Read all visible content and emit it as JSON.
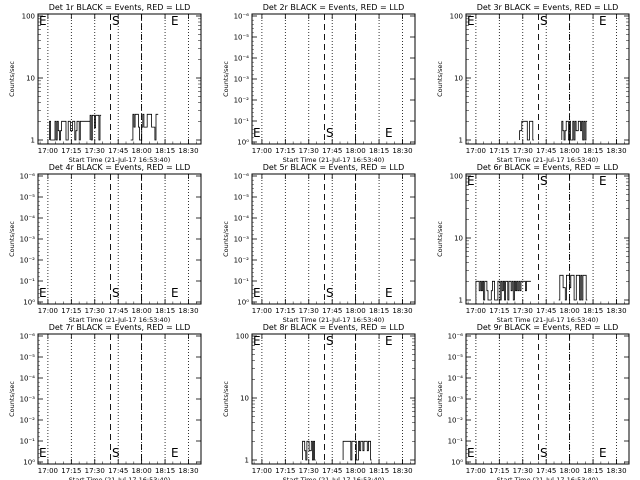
{
  "chart_data": [
    {
      "id": "1r",
      "title": "Det 1r BLACK = Events, RED = LLD",
      "type": "line",
      "scale": "log",
      "yticks": [
        "1",
        "10",
        "100"
      ],
      "ylim": [
        1,
        100
      ],
      "ylabel": "Counts/sec",
      "xlabel": "Start Time (21-Jul-17 16:53:40)",
      "xticks": [
        "17:00",
        "17:15",
        "17:30",
        "17:45",
        "18:00",
        "18:15",
        "18:30"
      ],
      "segments": [
        {
          "from": "17:01",
          "to": "17:27",
          "level": 2
        },
        {
          "from": "17:27",
          "to": "17:34",
          "level": 2.5
        },
        {
          "from": "17:53",
          "to": "18:10",
          "level": 2.6
        }
      ],
      "markers": [
        {
          "label": "S",
          "time": "17:40"
        },
        {
          "label": "E",
          "time": "18:14"
        }
      ],
      "series_colors": {
        "events": "#000000",
        "lld": "#ff0000"
      }
    },
    {
      "id": "2r",
      "title": "Det 2r BLACK = Events, RED = LLD",
      "type": "line",
      "scale": "log",
      "yticks": [
        "10⁰",
        "10⁻¹",
        "10⁻²",
        "10⁻³",
        "10⁻⁴",
        "10⁻⁵",
        "10⁻⁶"
      ],
      "ylim": [
        1,
        1e-06
      ],
      "ylabel": "Counts/sec",
      "xlabel": "Start Time (21-Jul-17 16:53:40)",
      "xticks": [
        "17:00",
        "17:15",
        "17:30",
        "17:45",
        "18:00",
        "18:15",
        "18:30"
      ],
      "segments": [],
      "markers": [
        {
          "label": "S",
          "time": "17:40"
        },
        {
          "label": "E",
          "time": "18:14"
        }
      ],
      "series_colors": {
        "events": "#000000",
        "lld": "#ff0000"
      }
    },
    {
      "id": "3r",
      "title": "Det 3r BLACK = Events, RED = LLD",
      "type": "line",
      "scale": "log",
      "yticks": [
        "1",
        "10",
        "100"
      ],
      "ylim": [
        1,
        100
      ],
      "ylabel": "Counts/sec",
      "xlabel": "Start Time (21-Jul-17 16:53:40)",
      "xticks": [
        "17:00",
        "17:15",
        "17:30",
        "17:45",
        "18:00",
        "18:15",
        "18:30"
      ],
      "segments": [
        {
          "from": "17:28",
          "to": "17:37",
          "level": 2
        },
        {
          "from": "17:55",
          "to": "18:11",
          "level": 2
        }
      ],
      "markers": [
        {
          "label": "S",
          "time": "17:40"
        },
        {
          "label": "E",
          "time": "18:14"
        }
      ],
      "series_colors": {
        "events": "#000000",
        "lld": "#ff0000"
      }
    },
    {
      "id": "4r",
      "title": "Det 4r BLACK = Events, RED = LLD",
      "type": "line",
      "scale": "log",
      "yticks": [
        "10⁰",
        "10⁻¹",
        "10⁻²",
        "10⁻³",
        "10⁻⁴",
        "10⁻⁵",
        "10⁻⁶"
      ],
      "ylim": [
        1,
        1e-06
      ],
      "ylabel": "Counts/sec",
      "xlabel": "Start Time (21-Jul-17 16:53:40)",
      "xticks": [
        "17:00",
        "17:15",
        "17:30",
        "17:45",
        "18:00",
        "18:15",
        "18:30"
      ],
      "segments": [],
      "markers": [
        {
          "label": "S",
          "time": "17:40"
        },
        {
          "label": "E",
          "time": "18:14"
        }
      ],
      "series_colors": {
        "events": "#000000",
        "lld": "#ff0000"
      }
    },
    {
      "id": "5r",
      "title": "Det 5r BLACK = Events, RED = LLD",
      "type": "line",
      "scale": "log",
      "yticks": [
        "10⁰",
        "10⁻¹",
        "10⁻²",
        "10⁻³",
        "10⁻⁴",
        "10⁻⁵",
        "10⁻⁶"
      ],
      "ylim": [
        1,
        1e-06
      ],
      "ylabel": "Counts/sec",
      "xlabel": "Start Time (21-Jul-17 16:53:40)",
      "xticks": [
        "17:00",
        "17:15",
        "17:30",
        "17:45",
        "18:00",
        "18:15",
        "18:30"
      ],
      "segments": [],
      "markers": [
        {
          "label": "S",
          "time": "17:40"
        },
        {
          "label": "E",
          "time": "18:14"
        }
      ],
      "series_colors": {
        "events": "#000000",
        "lld": "#ff0000"
      }
    },
    {
      "id": "6r",
      "title": "Det 6r BLACK = Events, RED = LLD",
      "type": "line",
      "scale": "log",
      "yticks": [
        "1",
        "10",
        "100"
      ],
      "ylim": [
        1,
        100
      ],
      "ylabel": "Counts/sec",
      "xlabel": "Start Time (21-Jul-17 16:53:40)",
      "xticks": [
        "17:00",
        "17:15",
        "17:30",
        "17:45",
        "18:00",
        "18:15",
        "18:30"
      ],
      "segments": [
        {
          "from": "17:00",
          "to": "17:35",
          "level": 2
        },
        {
          "from": "17:53",
          "to": "18:11",
          "level": 2.5
        }
      ],
      "markers": [
        {
          "label": "S",
          "time": "17:40"
        },
        {
          "label": "E",
          "time": "18:14"
        }
      ],
      "series_colors": {
        "events": "#000000",
        "lld": "#ff0000"
      }
    },
    {
      "id": "7r",
      "title": "Det 7r BLACK = Events, RED = LLD",
      "type": "line",
      "scale": "log",
      "yticks": [
        "10⁰",
        "10⁻¹",
        "10⁻²",
        "10⁻³",
        "10⁻⁴",
        "10⁻⁵",
        "10⁻⁶"
      ],
      "ylim": [
        1,
        1e-06
      ],
      "ylabel": "Counts/sec",
      "xlabel": "Start Time (21-Jul-17 16:53:40)",
      "xticks": [
        "17:00",
        "17:15",
        "17:30",
        "17:45",
        "18:00",
        "18:15",
        "18:30"
      ],
      "segments": [],
      "markers": [
        {
          "label": "S",
          "time": "17:40"
        },
        {
          "label": "E",
          "time": "18:14"
        }
      ],
      "series_colors": {
        "events": "#000000",
        "lld": "#ff0000"
      }
    },
    {
      "id": "8r",
      "title": "Det 8r BLACK = Events, RED = LLD",
      "type": "line",
      "scale": "log",
      "yticks": [
        "1",
        "10",
        "100"
      ],
      "ylim": [
        1,
        100
      ],
      "ylabel": "Counts/sec",
      "xlabel": "Start Time (21-Jul-17 16:53:40)",
      "xticks": [
        "17:00",
        "17:15",
        "17:30",
        "17:45",
        "18:00",
        "18:15",
        "18:30"
      ],
      "segments": [
        {
          "from": "17:26",
          "to": "17:34",
          "level": 2
        },
        {
          "from": "17:52",
          "to": "18:10",
          "level": 2
        }
      ],
      "markers": [
        {
          "label": "S",
          "time": "17:40"
        },
        {
          "label": "E",
          "time": "18:14"
        }
      ],
      "series_colors": {
        "events": "#000000",
        "lld": "#ff0000"
      }
    },
    {
      "id": "9r",
      "title": "Det 9r BLACK = Events, RED = LLD",
      "type": "line",
      "scale": "log",
      "yticks": [
        "10⁰",
        "10⁻¹",
        "10⁻²",
        "10⁻³",
        "10⁻⁴",
        "10⁻⁵",
        "10⁻⁶"
      ],
      "ylim": [
        1,
        1e-06
      ],
      "ylabel": "Counts/sec",
      "xlabel": "Start Time (21-Jul-17 16:53:40)",
      "xticks": [
        "17:00",
        "17:15",
        "17:30",
        "17:45",
        "18:00",
        "18:15",
        "18:30"
      ],
      "segments": [],
      "markers": [
        {
          "label": "S",
          "time": "17:40"
        },
        {
          "label": "E",
          "time": "18:14"
        }
      ],
      "series_colors": {
        "events": "#000000",
        "lld": "#ff0000"
      }
    }
  ]
}
